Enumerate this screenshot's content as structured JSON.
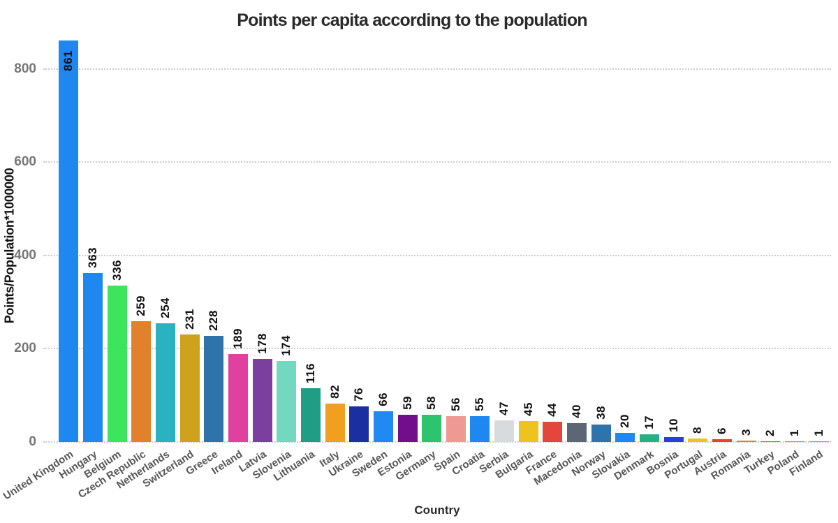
{
  "chart_data": {
    "type": "bar",
    "title": "Points per capita according to the population",
    "xlabel": "Country",
    "ylabel": "Points/Population*1000000",
    "ylim": [
      0,
      866
    ],
    "yticks": [
      0,
      200,
      400,
      600,
      800
    ],
    "grid": "horizontal dotted",
    "legend": "none",
    "value_labels": "rotated 90deg above bars (inside bar for tallest)",
    "categories": [
      "United Kingdom",
      "Hungary",
      "Belgium",
      "Czech Republic",
      "Netherlands",
      "Switzerland",
      "Greece",
      "Ireland",
      "Latvia",
      "Slovenia",
      "Lithuania",
      "Italy",
      "Ukraine",
      "Sweden",
      "Estonia",
      "Germany",
      "Spain",
      "Croatia",
      "Serbia",
      "Bulgaria",
      "France",
      "Macedonia",
      "Norway",
      "Slovakia",
      "Denmark",
      "Bosnia",
      "Portugal",
      "Austria",
      "Romania",
      "Turkey",
      "Poland",
      "Finland"
    ],
    "values": [
      861,
      363,
      336,
      259,
      254,
      231,
      228,
      189,
      178,
      174,
      116,
      82,
      76,
      66,
      59,
      58,
      56,
      55,
      47,
      45,
      44,
      40,
      38,
      20,
      17,
      10,
      8,
      6,
      3,
      2,
      1,
      1
    ],
    "bar_colors": [
      "#1e87f0",
      "#1e87f0",
      "#3ce55c",
      "#e1812b",
      "#28b2c2",
      "#cfa21d",
      "#2e74ab",
      "#e0409e",
      "#7b3fa0",
      "#72d8c0",
      "#1f9e85",
      "#f0a01e",
      "#1c2fa0",
      "#2189f2",
      "#720e8c",
      "#2ec46e",
      "#ee9a92",
      "#1e87f0",
      "#d8dbde",
      "#edc31f",
      "#e2463d",
      "#5c6677",
      "#2e74ab",
      "#1e87f0",
      "#26b183",
      "#2a3ed9",
      "#edc31f",
      "#e5432f",
      "#e1812b",
      "#e2463d",
      "#57a0e8",
      "#57a0e8"
    ],
    "colors": {
      "background": "#ffffff",
      "gridline": "#cccccc",
      "title_text": "#2a2a2a",
      "y_tick_text": "#767676",
      "x_tick_text": "#565656",
      "value_label_text": "#111111"
    }
  }
}
